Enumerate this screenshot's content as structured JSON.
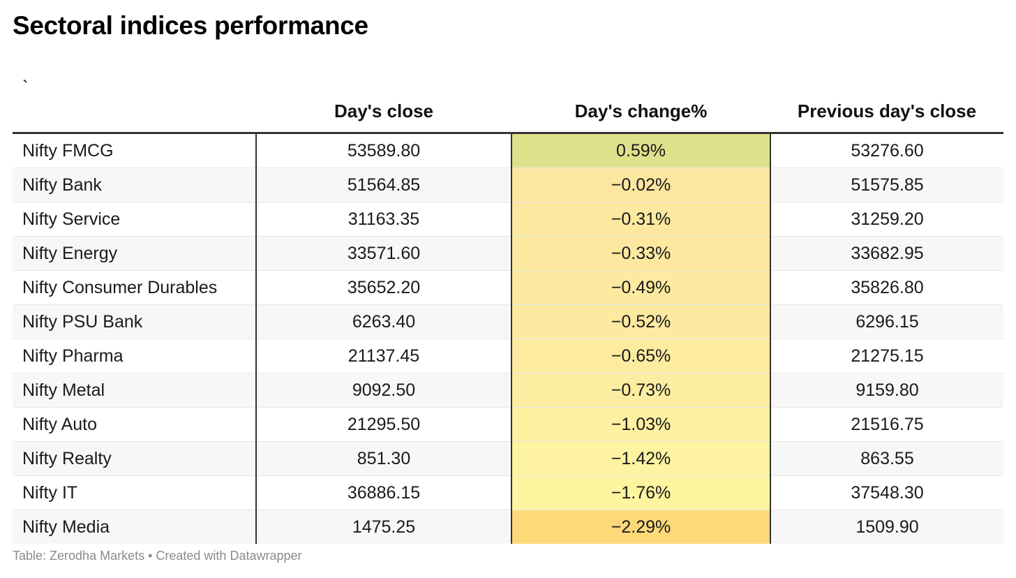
{
  "title": "Sectoral indices performance",
  "footer": "Table: Zerodha Markets • Created with Datawrapper",
  "colors": {
    "positive": "#dfe08a",
    "small_negative": "#fde79e",
    "mid_negative": "#fdef9f",
    "large_negative": "#fef59f",
    "largest_negative": "#fdd97a",
    "header_rule": "#333333"
  },
  "chart_data": {
    "type": "table",
    "columns": [
      "`",
      "Day's close",
      "Day's change%",
      "Previous day's close"
    ],
    "rows": [
      {
        "name": "Nifty FMCG",
        "close": "53589.80",
        "change": "0.59%",
        "change_value": 0.59,
        "prev": "53276.60",
        "color": "#dfe08a"
      },
      {
        "name": "Nifty Bank",
        "close": "51564.85",
        "change": "−0.02%",
        "change_value": -0.02,
        "prev": "51575.85",
        "color": "#fde69f"
      },
      {
        "name": "Nifty Service",
        "close": "31163.35",
        "change": "−0.31%",
        "change_value": -0.31,
        "prev": "31259.20",
        "color": "#fde8a0"
      },
      {
        "name": "Nifty Energy",
        "close": "33571.60",
        "change": "−0.33%",
        "change_value": -0.33,
        "prev": "33682.95",
        "color": "#fde8a0"
      },
      {
        "name": "Nifty Consumer Durables",
        "close": "35652.20",
        "change": "−0.49%",
        "change_value": -0.49,
        "prev": "35826.80",
        "color": "#fdeaa0"
      },
      {
        "name": "Nifty PSU Bank",
        "close": "6263.40",
        "change": "−0.52%",
        "change_value": -0.52,
        "prev": "6296.15",
        "color": "#fdeaa0"
      },
      {
        "name": "Nifty Pharma",
        "close": "21137.45",
        "change": "−0.65%",
        "change_value": -0.65,
        "prev": "21275.15",
        "color": "#fdeca0"
      },
      {
        "name": "Nifty Metal",
        "close": "9092.50",
        "change": "−0.73%",
        "change_value": -0.73,
        "prev": "9159.80",
        "color": "#fdeda0"
      },
      {
        "name": "Nifty Auto",
        "close": "21295.50",
        "change": "−1.03%",
        "change_value": -1.03,
        "prev": "21516.75",
        "color": "#fdf0a0"
      },
      {
        "name": "Nifty Realty",
        "close": "851.30",
        "change": "−1.42%",
        "change_value": -1.42,
        "prev": "863.55",
        "color": "#fef3a0"
      },
      {
        "name": "Nifty IT",
        "close": "36886.15",
        "change": "−1.76%",
        "change_value": -1.76,
        "prev": "37548.30",
        "color": "#fef5a0"
      },
      {
        "name": "Nifty Media",
        "close": "1475.25",
        "change": "−2.29%",
        "change_value": -2.29,
        "prev": "1509.90",
        "color": "#fdd97a"
      }
    ]
  }
}
